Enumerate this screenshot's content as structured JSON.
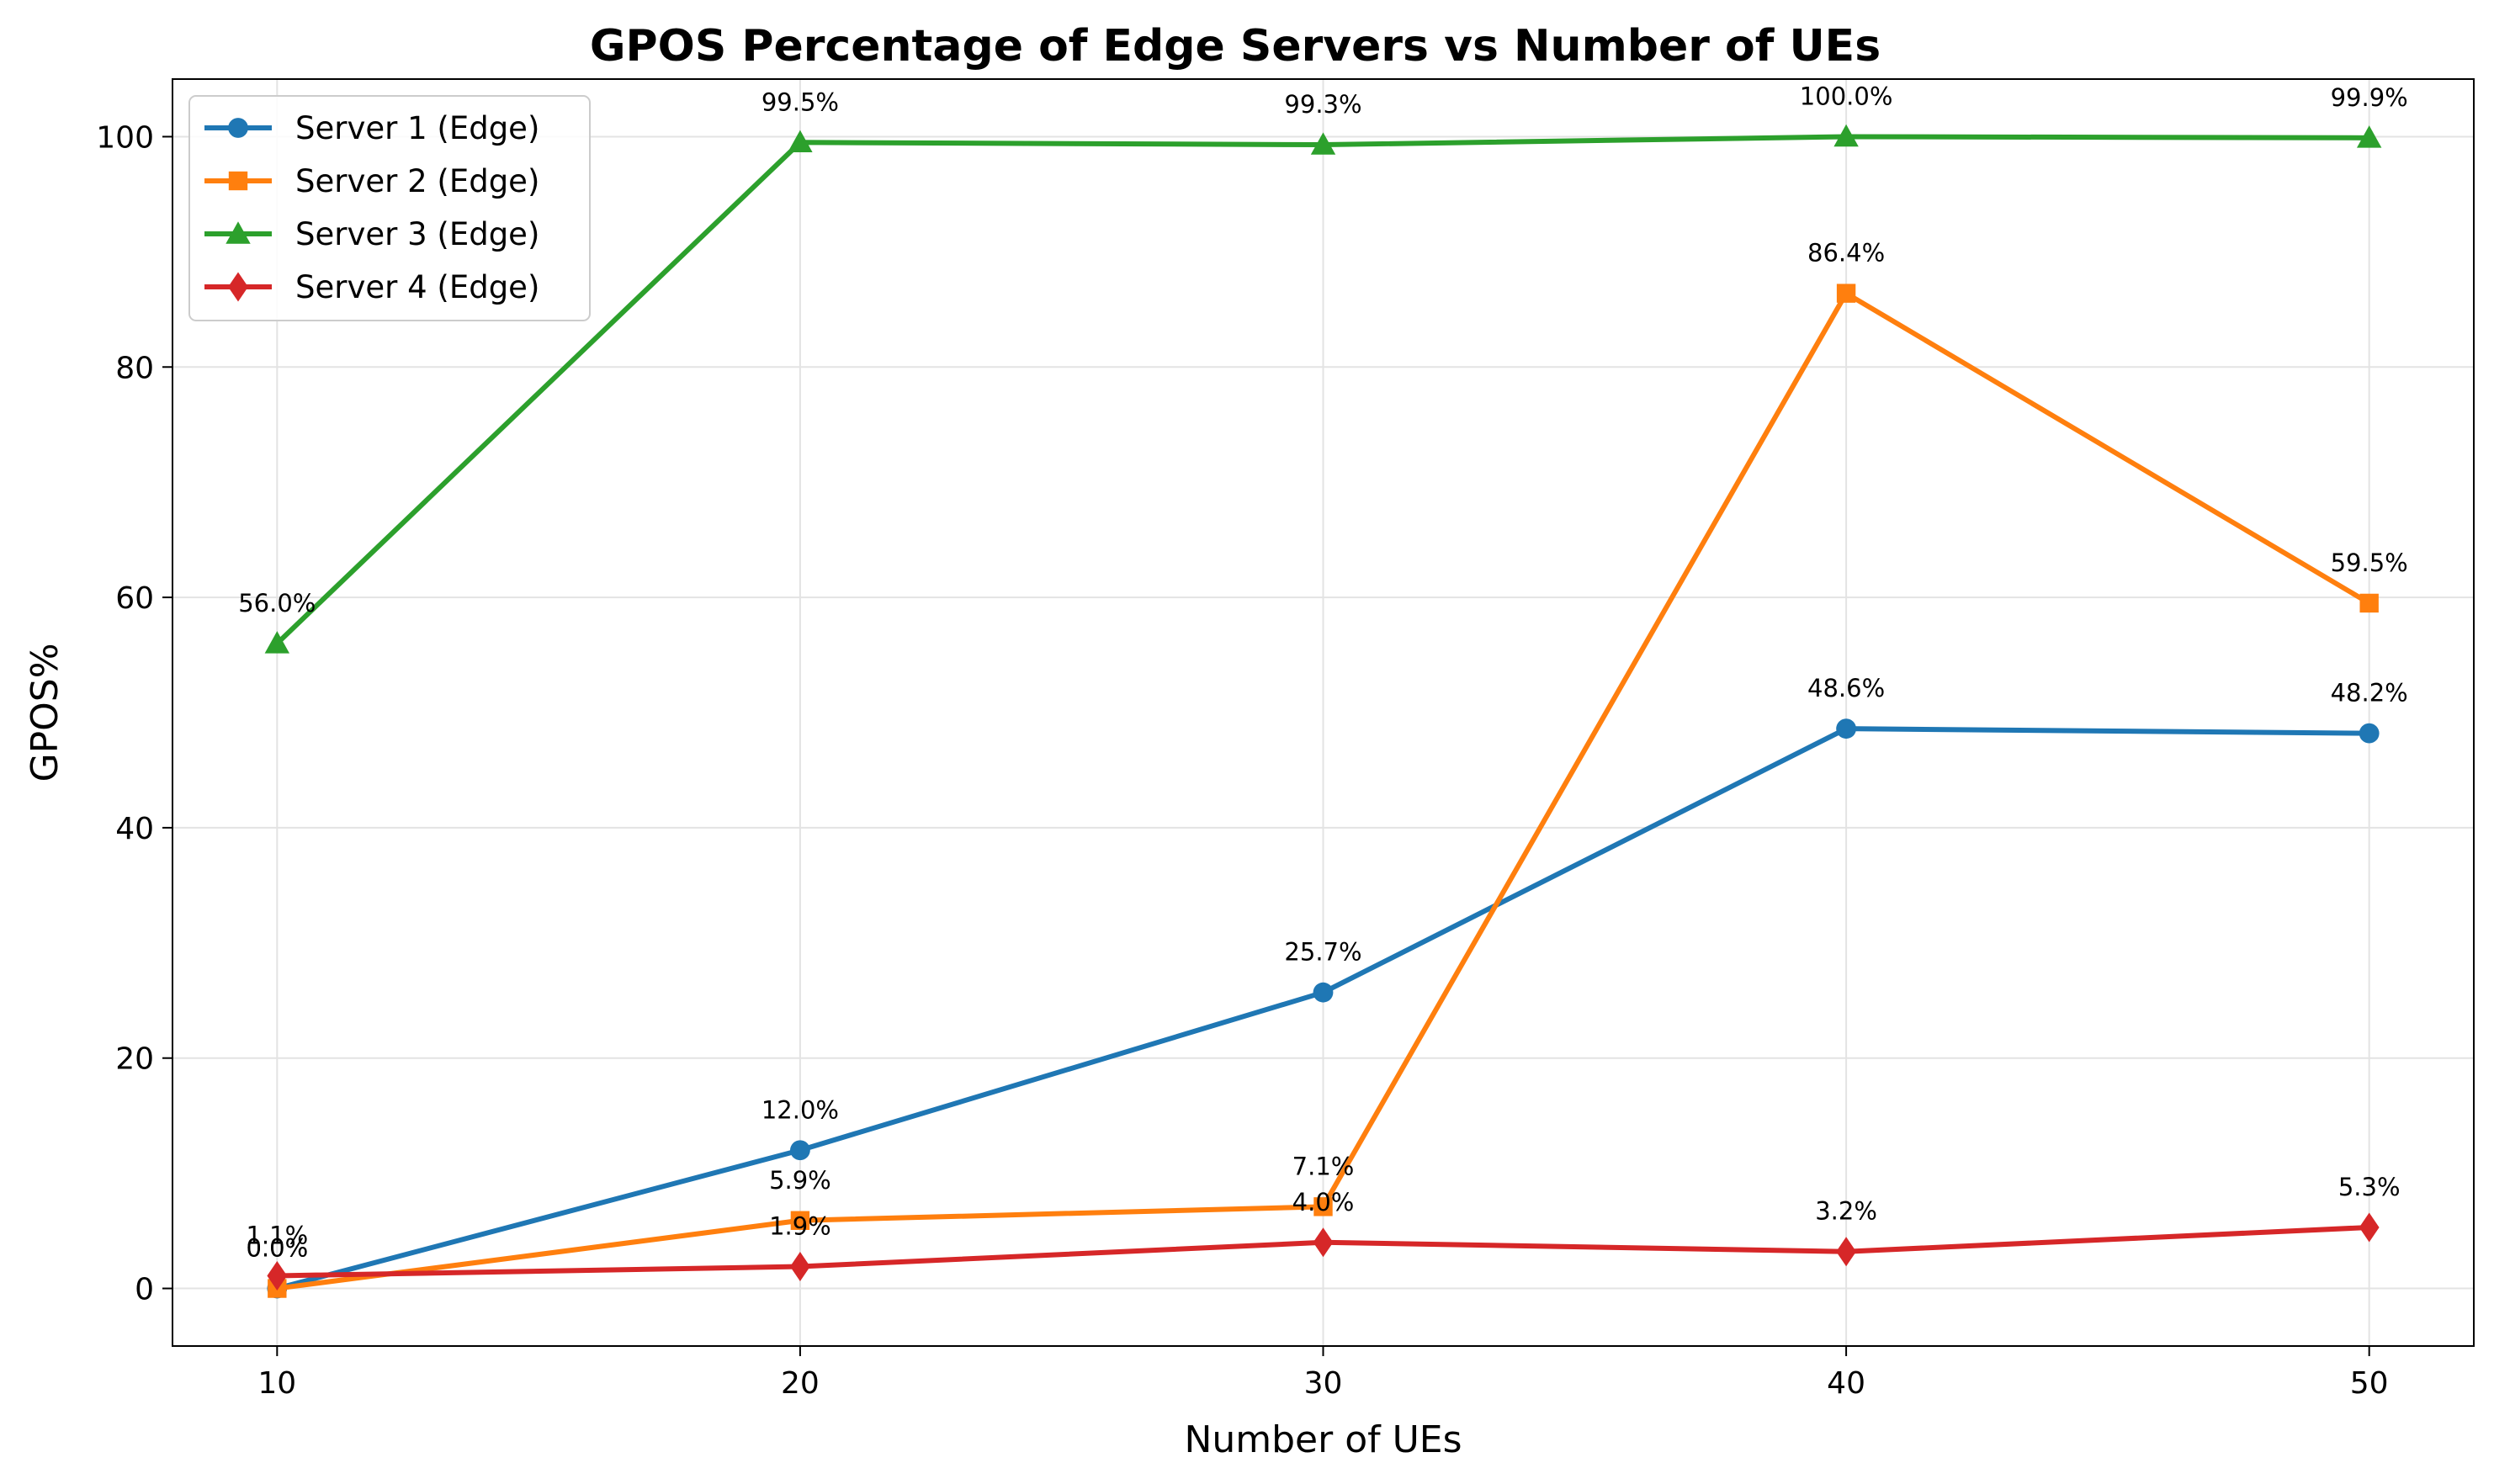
{
  "chart_data": {
    "type": "line",
    "title": "GPOS Percentage of Edge Servers vs Number of UEs",
    "xlabel": "Number of UEs",
    "ylabel": "GPOS%",
    "x": [
      10,
      20,
      30,
      40,
      50
    ],
    "xlim": [
      8,
      52
    ],
    "ylim": [
      -5,
      105
    ],
    "xticks": [
      10,
      20,
      30,
      40,
      50
    ],
    "yticks": [
      0,
      20,
      40,
      60,
      80,
      100
    ],
    "grid": true,
    "legend_position": "top-left",
    "series": [
      {
        "name": "Server 1 (Edge)",
        "color": "#1f77b4",
        "marker": "circle",
        "values": [
          0.0,
          12.0,
          25.7,
          48.6,
          48.2
        ],
        "labels": [
          "0.0%",
          "12.0%",
          "25.7%",
          "48.6%",
          "48.2%"
        ]
      },
      {
        "name": "Server 2 (Edge)",
        "color": "#ff7f0e",
        "marker": "square",
        "values": [
          0.0,
          5.9,
          7.1,
          86.4,
          59.5
        ],
        "labels": [
          "0.0%",
          "5.9%",
          "7.1%",
          "86.4%",
          "59.5%"
        ]
      },
      {
        "name": "Server 3 (Edge)",
        "color": "#2ca02c",
        "marker": "triangle",
        "values": [
          56.0,
          99.5,
          99.3,
          100.0,
          99.9
        ],
        "labels": [
          "56.0%",
          "99.5%",
          "99.3%",
          "100.0%",
          "99.9%"
        ]
      },
      {
        "name": "Server 4 (Edge)",
        "color": "#d62728",
        "marker": "diamond",
        "values": [
          1.1,
          1.9,
          4.0,
          3.2,
          5.3
        ],
        "labels": [
          "1.1%",
          "1.9%",
          "4.0%",
          "3.2%",
          "5.3%"
        ]
      }
    ]
  }
}
